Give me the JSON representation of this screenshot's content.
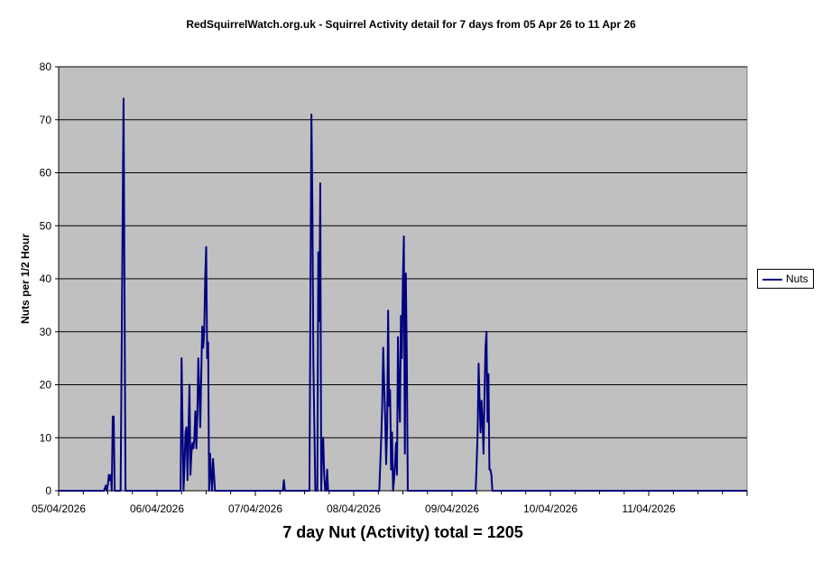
{
  "chart_data": {
    "type": "line",
    "title": "RedSquirrelWatch.org.uk - Squirrel Activity detail for 7 days from 05 Apr 26 to 11 Apr 26",
    "xlabel": "",
    "ylabel": "Nuts per  1/2 Hour",
    "ylim": [
      0,
      80
    ],
    "yticks": [
      0,
      10,
      20,
      30,
      40,
      50,
      60,
      70,
      80
    ],
    "xlim_days": [
      0,
      7
    ],
    "xtick_labels": [
      "05/04/2026",
      "06/04/2026",
      "07/04/2026",
      "08/04/2026",
      "09/04/2026",
      "10/04/2026",
      "11/04/2026"
    ],
    "grid": "horizontal",
    "legend_position": "right",
    "series_color": "#000080",
    "plot_background": "#c0c0c0",
    "series": [
      {
        "name": "Nuts",
        "points": [
          [
            0,
            0
          ],
          [
            0.46,
            0
          ],
          [
            0.48,
            1
          ],
          [
            0.49,
            0
          ],
          [
            0.5,
            1
          ],
          [
            0.51,
            3
          ],
          [
            0.52,
            2
          ],
          [
            0.53,
            3
          ],
          [
            0.54,
            0
          ],
          [
            0.55,
            14
          ],
          [
            0.56,
            14
          ],
          [
            0.57,
            0
          ],
          [
            0.63,
            0
          ],
          [
            0.64,
            25
          ],
          [
            0.65,
            50
          ],
          [
            0.66,
            74
          ],
          [
            0.67,
            37
          ],
          [
            0.68,
            0
          ],
          [
            1.24,
            0
          ],
          [
            1.25,
            25
          ],
          [
            1.26,
            12
          ],
          [
            1.27,
            0
          ],
          [
            1.28,
            5
          ],
          [
            1.29,
            11
          ],
          [
            1.3,
            12
          ],
          [
            1.31,
            2
          ],
          [
            1.32,
            11
          ],
          [
            1.33,
            20
          ],
          [
            1.34,
            3
          ],
          [
            1.35,
            7
          ],
          [
            1.36,
            9
          ],
          [
            1.37,
            8
          ],
          [
            1.38,
            10
          ],
          [
            1.39,
            15
          ],
          [
            1.4,
            8
          ],
          [
            1.41,
            14
          ],
          [
            1.42,
            25
          ],
          [
            1.43,
            19
          ],
          [
            1.44,
            12
          ],
          [
            1.45,
            22
          ],
          [
            1.46,
            31
          ],
          [
            1.47,
            27
          ],
          [
            1.48,
            30
          ],
          [
            1.49,
            40
          ],
          [
            1.5,
            46
          ],
          [
            1.51,
            25
          ],
          [
            1.52,
            28
          ],
          [
            1.53,
            0
          ],
          [
            1.54,
            7
          ],
          [
            1.55,
            3
          ],
          [
            1.56,
            0
          ],
          [
            1.57,
            6
          ],
          [
            1.58,
            3
          ],
          [
            1.59,
            0
          ],
          [
            2.28,
            0
          ],
          [
            2.29,
            2
          ],
          [
            2.3,
            0
          ],
          [
            2.55,
            0
          ],
          [
            2.56,
            36
          ],
          [
            2.57,
            71
          ],
          [
            2.58,
            54
          ],
          [
            2.59,
            24
          ],
          [
            2.6,
            12
          ],
          [
            2.61,
            0
          ],
          [
            2.63,
            0
          ],
          [
            2.64,
            45
          ],
          [
            2.65,
            32
          ],
          [
            2.66,
            58
          ],
          [
            2.67,
            0
          ],
          [
            2.68,
            8
          ],
          [
            2.69,
            10
          ],
          [
            2.7,
            3
          ],
          [
            2.71,
            0
          ],
          [
            2.72,
            0
          ],
          [
            2.73,
            4
          ],
          [
            2.74,
            0
          ],
          [
            3.26,
            0
          ],
          [
            3.27,
            5
          ],
          [
            3.28,
            10
          ],
          [
            3.29,
            16
          ],
          [
            3.3,
            27
          ],
          [
            3.31,
            20
          ],
          [
            3.32,
            14
          ],
          [
            3.33,
            5
          ],
          [
            3.34,
            12
          ],
          [
            3.35,
            34
          ],
          [
            3.36,
            16
          ],
          [
            3.37,
            19
          ],
          [
            3.38,
            4
          ],
          [
            3.39,
            11
          ],
          [
            3.4,
            0
          ],
          [
            3.41,
            2
          ],
          [
            3.42,
            5
          ],
          [
            3.43,
            9
          ],
          [
            3.44,
            3
          ],
          [
            3.45,
            29
          ],
          [
            3.46,
            18
          ],
          [
            3.47,
            13
          ],
          [
            3.48,
            33
          ],
          [
            3.49,
            25
          ],
          [
            3.5,
            40
          ],
          [
            3.51,
            48
          ],
          [
            3.52,
            7
          ],
          [
            3.53,
            41
          ],
          [
            3.54,
            25
          ],
          [
            3.55,
            0
          ],
          [
            4.24,
            0
          ],
          [
            4.25,
            5
          ],
          [
            4.26,
            11
          ],
          [
            4.27,
            24
          ],
          [
            4.28,
            17
          ],
          [
            4.29,
            11
          ],
          [
            4.3,
            17
          ],
          [
            4.31,
            13
          ],
          [
            4.32,
            7
          ],
          [
            4.33,
            18
          ],
          [
            4.34,
            27
          ],
          [
            4.35,
            30
          ],
          [
            4.36,
            13
          ],
          [
            4.37,
            22
          ],
          [
            4.38,
            4
          ],
          [
            4.39,
            4
          ],
          [
            4.4,
            3
          ],
          [
            4.41,
            0
          ],
          [
            7,
            0
          ]
        ]
      }
    ]
  },
  "footer": "7 day Nut (Activity) total = 1205"
}
